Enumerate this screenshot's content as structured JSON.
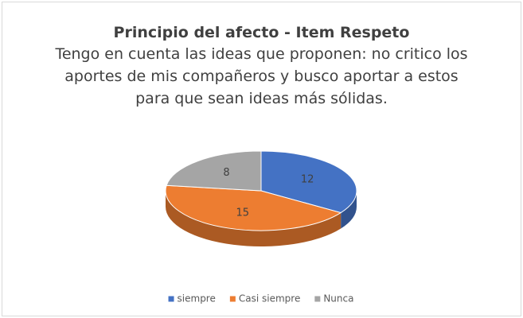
{
  "chart_data": {
    "type": "pie3d",
    "title": "Principio del afecto - Item Respeto",
    "subtitle": "Tengo en cuenta las ideas que proponen: no critico los aportes de mis compañeros y busco aportar a estos para que sean ideas más sólidas.",
    "categories": [
      "siempre",
      "Casi siempre",
      "Nunca"
    ],
    "values": [
      12,
      15,
      8
    ],
    "colors": [
      "#4472c4",
      "#ed7d31",
      "#a5a5a5"
    ],
    "legend": "bottom"
  }
}
